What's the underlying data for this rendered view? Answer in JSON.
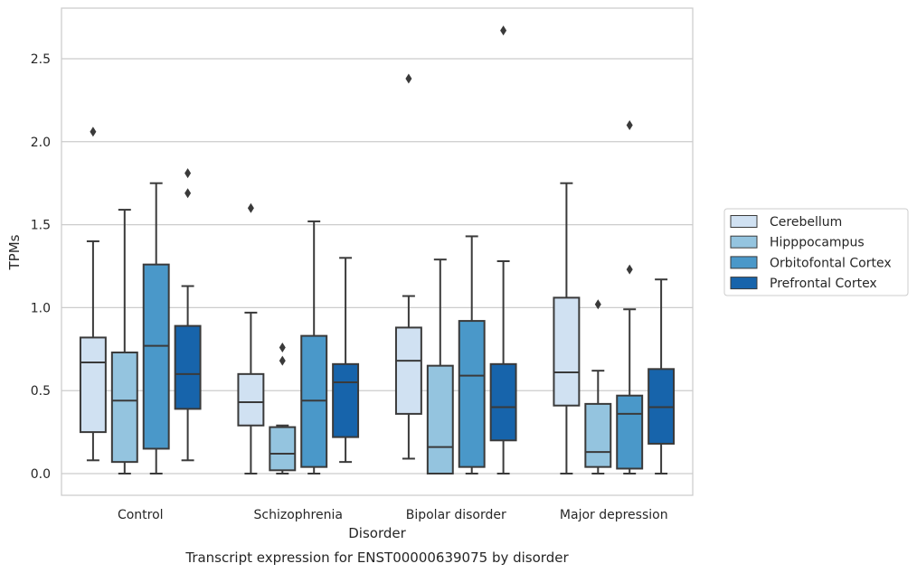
{
  "chart_data": {
    "type": "box",
    "title": "Transcript expression for ENST00000639075 by disorder",
    "xlabel": "Disorder",
    "ylabel": "TPMs",
    "ylim": [
      -0.13,
      2.83
    ],
    "yticks": [
      0.0,
      0.5,
      1.0,
      1.5,
      2.0,
      2.5
    ],
    "ytick_labels": [
      "0.0",
      "0.5",
      "1.0",
      "1.5",
      "2.0",
      "2.5"
    ],
    "grid": "horizontal",
    "legend_position": "right",
    "categories": [
      "Control",
      "Schizophrenia",
      "Bipolar disorder",
      "Major depression"
    ],
    "series": [
      {
        "name": "Cerebellum",
        "color": "#d0e1f2",
        "boxes": [
          {
            "whislo": 0.08,
            "q1": 0.25,
            "med": 0.67,
            "q3": 0.82,
            "whishi": 1.4,
            "fliers": [
              2.06
            ]
          },
          {
            "whislo": 0.0,
            "q1": 0.29,
            "med": 0.43,
            "q3": 0.6,
            "whishi": 0.97,
            "fliers": [
              1.6
            ]
          },
          {
            "whislo": 0.09,
            "q1": 0.36,
            "med": 0.68,
            "q3": 0.88,
            "whishi": 1.07,
            "fliers": [
              2.38
            ]
          },
          {
            "whislo": 0.0,
            "q1": 0.41,
            "med": 0.61,
            "q3": 1.06,
            "whishi": 1.75,
            "fliers": []
          }
        ]
      },
      {
        "name": "Hipppocampus",
        "color": "#94c4df",
        "boxes": [
          {
            "whislo": 0.0,
            "q1": 0.07,
            "med": 0.44,
            "q3": 0.73,
            "whishi": 1.59,
            "fliers": []
          },
          {
            "whislo": 0.0,
            "q1": 0.02,
            "med": 0.12,
            "q3": 0.28,
            "whishi": 0.29,
            "fliers": [
              0.68,
              0.76
            ]
          },
          {
            "whislo": 0.0,
            "q1": 0.0,
            "med": 0.16,
            "q3": 0.65,
            "whishi": 1.29,
            "fliers": []
          },
          {
            "whislo": 0.0,
            "q1": 0.04,
            "med": 0.13,
            "q3": 0.42,
            "whishi": 0.62,
            "fliers": [
              1.02
            ]
          }
        ]
      },
      {
        "name": "Orbitofontal Cortex",
        "color": "#4a98c9",
        "boxes": [
          {
            "whislo": 0.0,
            "q1": 0.15,
            "med": 0.77,
            "q3": 1.26,
            "whishi": 1.75,
            "fliers": []
          },
          {
            "whislo": 0.0,
            "q1": 0.04,
            "med": 0.44,
            "q3": 0.83,
            "whishi": 1.52,
            "fliers": []
          },
          {
            "whislo": 0.0,
            "q1": 0.04,
            "med": 0.59,
            "q3": 0.92,
            "whishi": 1.43,
            "fliers": []
          },
          {
            "whislo": 0.0,
            "q1": 0.03,
            "med": 0.36,
            "q3": 0.47,
            "whishi": 0.99,
            "fliers": [
              1.23,
              2.1
            ]
          }
        ]
      },
      {
        "name": "Prefrontal Cortex",
        "color": "#1764ab",
        "boxes": [
          {
            "whislo": 0.08,
            "q1": 0.39,
            "med": 0.6,
            "q3": 0.89,
            "whishi": 1.13,
            "fliers": [
              1.69,
              1.81
            ]
          },
          {
            "whislo": 0.07,
            "q1": 0.22,
            "med": 0.55,
            "q3": 0.66,
            "whishi": 1.3,
            "fliers": []
          },
          {
            "whislo": 0.0,
            "q1": 0.2,
            "med": 0.4,
            "q3": 0.66,
            "whishi": 1.28,
            "fliers": [
              2.67
            ]
          },
          {
            "whislo": 0.0,
            "q1": 0.18,
            "med": 0.4,
            "q3": 0.63,
            "whishi": 1.17,
            "fliers": []
          }
        ]
      }
    ]
  }
}
